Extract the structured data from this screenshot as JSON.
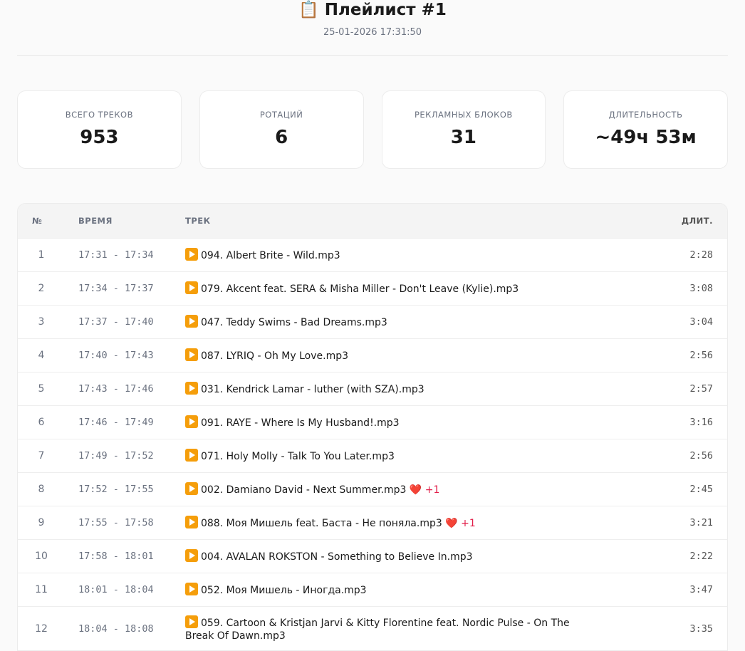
{
  "header": {
    "icon": "clipboard-icon",
    "title": "📋 Плейлист #1",
    "date": "25-01-2026 17:31:50"
  },
  "stats": [
    {
      "label": "ВСЕГО ТРЕКОВ",
      "value": "953"
    },
    {
      "label": "РОТАЦИЙ",
      "value": "6"
    },
    {
      "label": "РЕКЛАМНЫХ БЛОКОВ",
      "value": "31"
    },
    {
      "label": "ДЛИТЕЛЬНОСТЬ",
      "value": "~49ч 53м"
    }
  ],
  "table": {
    "headers": {
      "num": "№",
      "time": "ВРЕМЯ",
      "track": "ТРЕК",
      "duration": "ДЛИТ."
    },
    "rows": [
      {
        "num": "1",
        "time": "17:31 - 17:34",
        "track": "094. Albert Brite - Wild.mp3",
        "extra": "",
        "duration": "2:28"
      },
      {
        "num": "2",
        "time": "17:34 - 17:37",
        "track": "079. Akcent feat. SERA & Misha Miller - Don't Leave (Kylie).mp3",
        "extra": "",
        "duration": "3:08"
      },
      {
        "num": "3",
        "time": "17:37 - 17:40",
        "track": "047. Teddy Swims - Bad Dreams.mp3",
        "extra": "",
        "duration": "3:04"
      },
      {
        "num": "4",
        "time": "17:40 - 17:43",
        "track": "087. LYRIQ - Oh My Love.mp3",
        "extra": "",
        "duration": "2:56"
      },
      {
        "num": "5",
        "time": "17:43 - 17:46",
        "track": "031. Kendrick Lamar - luther (with SZA).mp3",
        "extra": "",
        "duration": "2:57"
      },
      {
        "num": "6",
        "time": "17:46 - 17:49",
        "track": "091. RAYE - Where Is My Husband!.mp3",
        "extra": "",
        "duration": "3:16"
      },
      {
        "num": "7",
        "time": "17:49 - 17:52",
        "track": "071. Holy Molly - Talk To You Later.mp3",
        "extra": "",
        "duration": "2:56"
      },
      {
        "num": "8",
        "time": "17:52 - 17:55",
        "track": "002. Damiano David - Next Summer.mp3",
        "extra": "❤️ +1",
        "duration": "2:45"
      },
      {
        "num": "9",
        "time": "17:55 - 17:58",
        "track": "088. Моя Мишель feat. Баста - Не поняла.mp3",
        "extra": "❤️ +1",
        "duration": "3:21"
      },
      {
        "num": "10",
        "time": "17:58 - 18:01",
        "track": "004. AVALAN ROKSTON - Something to Believe In.mp3",
        "extra": "",
        "duration": "2:22"
      },
      {
        "num": "11",
        "time": "18:01 - 18:04",
        "track": "052. Моя Мишель - Иногда.mp3",
        "extra": "",
        "duration": "3:47"
      },
      {
        "num": "12",
        "time": "18:04 - 18:08",
        "track": "059. Cartoon & Kristjan Jarvi & Kitty Florentine feat. Nordic Pulse - On The Break Of Dawn.mp3",
        "extra": "",
        "duration": "3:35"
      }
    ]
  },
  "colors": {
    "play_icon": "#f59e0b",
    "accent_heart": "#e11d48"
  }
}
